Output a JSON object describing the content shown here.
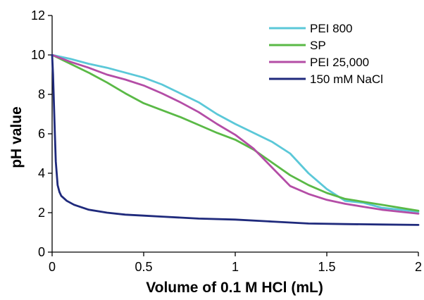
{
  "chart_data": {
    "type": "line",
    "xlabel": "Volume of 0.1 M HCl (mL)",
    "ylabel": "pH value",
    "xlim": [
      0,
      2
    ],
    "ylim": [
      0,
      12
    ],
    "x_ticks": [
      "0",
      "0.5",
      "1",
      "1.5",
      "2"
    ],
    "y_ticks": [
      "0",
      "2",
      "4",
      "6",
      "8",
      "10",
      "12"
    ],
    "grid": false,
    "legend_position": "top-right",
    "series": [
      {
        "name": "PEI 800",
        "color": "#5bc8d8",
        "points": [
          [
            0,
            10
          ],
          [
            0.1,
            9.8
          ],
          [
            0.2,
            9.55
          ],
          [
            0.3,
            9.35
          ],
          [
            0.4,
            9.1
          ],
          [
            0.5,
            8.85
          ],
          [
            0.6,
            8.5
          ],
          [
            0.7,
            8.05
          ],
          [
            0.8,
            7.6
          ],
          [
            0.9,
            7.0
          ],
          [
            1.0,
            6.5
          ],
          [
            1.1,
            6.05
          ],
          [
            1.2,
            5.6
          ],
          [
            1.3,
            5.0
          ],
          [
            1.4,
            4.0
          ],
          [
            1.5,
            3.2
          ],
          [
            1.6,
            2.6
          ],
          [
            1.7,
            2.5
          ],
          [
            1.8,
            2.25
          ],
          [
            1.9,
            2.15
          ],
          [
            2.0,
            2.05
          ]
        ]
      },
      {
        "name": "SP",
        "color": "#5ab946",
        "points": [
          [
            0,
            10
          ],
          [
            0.1,
            9.55
          ],
          [
            0.2,
            9.1
          ],
          [
            0.3,
            8.6
          ],
          [
            0.4,
            8.05
          ],
          [
            0.5,
            7.55
          ],
          [
            0.6,
            7.2
          ],
          [
            0.7,
            6.85
          ],
          [
            0.8,
            6.45
          ],
          [
            0.9,
            6.05
          ],
          [
            1.0,
            5.7
          ],
          [
            1.1,
            5.2
          ],
          [
            1.2,
            4.55
          ],
          [
            1.3,
            3.9
          ],
          [
            1.4,
            3.4
          ],
          [
            1.5,
            3.0
          ],
          [
            1.6,
            2.7
          ],
          [
            1.7,
            2.55
          ],
          [
            1.8,
            2.4
          ],
          [
            1.9,
            2.25
          ],
          [
            2.0,
            2.1
          ]
        ]
      },
      {
        "name": "PEI 25,000",
        "color": "#b44da6",
        "points": [
          [
            0,
            10
          ],
          [
            0.1,
            9.65
          ],
          [
            0.2,
            9.35
          ],
          [
            0.3,
            9.0
          ],
          [
            0.4,
            8.75
          ],
          [
            0.5,
            8.45
          ],
          [
            0.6,
            8.05
          ],
          [
            0.7,
            7.6
          ],
          [
            0.8,
            7.1
          ],
          [
            0.9,
            6.5
          ],
          [
            1.0,
            5.95
          ],
          [
            1.1,
            5.25
          ],
          [
            1.2,
            4.3
          ],
          [
            1.3,
            3.35
          ],
          [
            1.4,
            2.95
          ],
          [
            1.5,
            2.65
          ],
          [
            1.6,
            2.45
          ],
          [
            1.7,
            2.3
          ],
          [
            1.8,
            2.15
          ],
          [
            1.9,
            2.05
          ],
          [
            2.0,
            1.95
          ]
        ]
      },
      {
        "name": "150 mM NaCl",
        "color": "#1f2a7c",
        "points": [
          [
            0,
            10
          ],
          [
            0.005,
            9.0
          ],
          [
            0.01,
            7.5
          ],
          [
            0.015,
            6.0
          ],
          [
            0.02,
            4.6
          ],
          [
            0.03,
            3.4
          ],
          [
            0.04,
            3.05
          ],
          [
            0.05,
            2.85
          ],
          [
            0.08,
            2.6
          ],
          [
            0.12,
            2.4
          ],
          [
            0.2,
            2.15
          ],
          [
            0.3,
            2.0
          ],
          [
            0.4,
            1.9
          ],
          [
            0.5,
            1.85
          ],
          [
            0.6,
            1.8
          ],
          [
            0.8,
            1.7
          ],
          [
            1.0,
            1.65
          ],
          [
            1.2,
            1.55
          ],
          [
            1.4,
            1.45
          ],
          [
            1.6,
            1.42
          ],
          [
            1.8,
            1.4
          ],
          [
            2.0,
            1.38
          ]
        ]
      }
    ]
  }
}
